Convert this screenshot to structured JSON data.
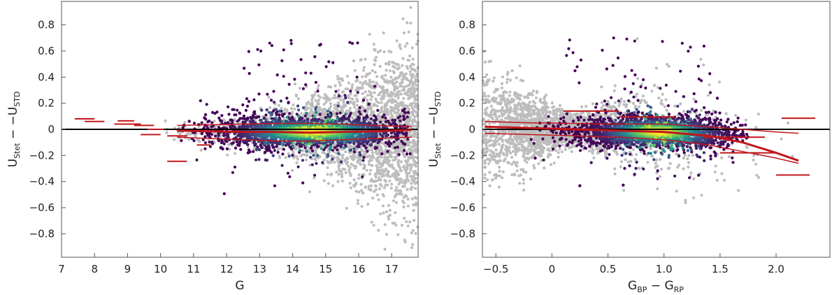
{
  "chart_data": [
    {
      "type": "scatter",
      "panel": "left",
      "title": "",
      "xlabel": "G",
      "ylabel_main": "U",
      "ylabel_sub1": "Stet",
      "ylabel_mid": " − −U",
      "ylabel_sub2": "STD",
      "xlim": [
        7.0,
        17.8
      ],
      "ylim": [
        -0.98,
        0.98
      ],
      "xticks": [
        7,
        8,
        9,
        10,
        11,
        12,
        13,
        14,
        15,
        16,
        17
      ],
      "yticks": [
        -0.8,
        -0.6,
        -0.4,
        -0.2,
        0,
        0.2,
        0.4,
        0.6,
        0.8
      ],
      "ytick_labels": [
        "−0.8",
        "−0.6",
        "−0.4",
        "−0.2",
        "0",
        "0.2",
        "0.4",
        "0.6",
        "0.8"
      ],
      "reference_line_y": 0,
      "series": [
        {
          "role": "all stars",
          "color": "#bdbdbd",
          "x_range": [
            9.5,
            17.8
          ],
          "y_spread_growth": "increases toward faint G"
        },
        {
          "role": "selected stars (density colored)",
          "colormap": [
            "#440154",
            "#3b528b",
            "#21918c",
            "#5ec962",
            "#fde725"
          ],
          "x_range": [
            10.5,
            17.6
          ],
          "y_center": -0.02
        },
        {
          "role": "running median",
          "color": "#c0161b",
          "x": [
            10.5,
            11.5,
            12.5,
            13.5,
            14.5,
            15.5,
            16.5,
            17.6
          ],
          "y": [
            -0.01,
            -0.015,
            -0.02,
            -0.02,
            -0.025,
            -0.02,
            -0.015,
            -0.005
          ]
        },
        {
          "role": "upper percentile",
          "color": "#c0161b",
          "x": [
            10.5,
            11.5,
            12.5,
            13.5,
            14.5,
            15.5,
            16.5,
            17.6
          ],
          "y": [
            0.03,
            0.035,
            0.04,
            0.045,
            0.045,
            0.04,
            0.03,
            0.02
          ]
        },
        {
          "role": "lower percentile",
          "color": "#c0161b",
          "x": [
            10.5,
            11.5,
            12.5,
            13.5,
            14.5,
            15.5,
            16.5,
            17.6
          ],
          "y": [
            -0.06,
            -0.07,
            -0.08,
            -0.09,
            -0.09,
            -0.08,
            -0.07,
            -0.06
          ]
        },
        {
          "role": "bright-star segments",
          "color": "#c0161b",
          "segments": [
            {
              "x0": 7.4,
              "x1": 8.0,
              "y": 0.08
            },
            {
              "x0": 7.7,
              "x1": 8.3,
              "y": 0.06
            },
            {
              "x0": 8.7,
              "x1": 9.2,
              "y": 0.065
            },
            {
              "x0": 8.6,
              "x1": 9.4,
              "y": 0.04
            },
            {
              "x0": 9.2,
              "x1": 9.8,
              "y": 0.03
            },
            {
              "x0": 9.6,
              "x1": 10.1,
              "y": 0.0
            },
            {
              "x0": 9.4,
              "x1": 10.0,
              "y": -0.04
            },
            {
              "x0": 10.2,
              "x1": 10.8,
              "y": -0.05
            },
            {
              "x0": 10.2,
              "x1": 10.8,
              "y": -0.245
            },
            {
              "x0": 11.1,
              "x1": 11.5,
              "y": -0.12
            }
          ]
        }
      ]
    },
    {
      "type": "scatter",
      "panel": "right",
      "title": "",
      "xlabel_main": "G",
      "xlabel_sub1": "BP",
      "xlabel_mid": " − G",
      "xlabel_sub2": "RP",
      "ylabel_main": "U",
      "ylabel_sub1": "Stet",
      "ylabel_mid": " − −U",
      "ylabel_sub2": "STD",
      "xlim": [
        -0.62,
        2.48
      ],
      "ylim": [
        -0.98,
        0.98
      ],
      "xticks": [
        -0.5,
        0,
        0.5,
        1.0,
        1.5,
        2.0
      ],
      "xtick_labels": [
        "−0.5",
        "0",
        "0.5",
        "1.0",
        "1.5",
        "2.0"
      ],
      "yticks": [
        -0.8,
        -0.6,
        -0.4,
        -0.2,
        0,
        0.2,
        0.4,
        0.6,
        0.8
      ],
      "ytick_labels": [
        "−0.8",
        "−0.6",
        "−0.4",
        "−0.2",
        "0",
        "0.2",
        "0.4",
        "0.6",
        "0.8"
      ],
      "reference_line_y": 0,
      "series": [
        {
          "role": "all stars",
          "color": "#bdbdbd",
          "x_range": [
            -0.62,
            2.48
          ]
        },
        {
          "role": "selected stars (density colored)",
          "colormap": [
            "#440154",
            "#3b528b",
            "#21918c",
            "#5ec962",
            "#fde725"
          ],
          "x_range": [
            -0.55,
            1.75
          ],
          "y_center": -0.02
        },
        {
          "role": "running median",
          "color": "#c0161b",
          "x": [
            -0.6,
            -0.2,
            0.2,
            0.6,
            1.0,
            1.4,
            1.7,
            2.0,
            2.2
          ],
          "y": [
            0.02,
            0.01,
            0.0,
            -0.01,
            -0.02,
            -0.05,
            -0.1,
            -0.18,
            -0.24
          ]
        },
        {
          "role": "upper percentile",
          "color": "#c0161b",
          "x": [
            -0.6,
            -0.2,
            0.2,
            0.6,
            1.0,
            1.4,
            1.7,
            2.0,
            2.2
          ],
          "y": [
            0.06,
            0.05,
            0.045,
            0.04,
            0.04,
            0.02,
            0.0,
            -0.02,
            -0.03
          ]
        },
        {
          "role": "lower percentile",
          "color": "#c0161b",
          "x": [
            -0.6,
            -0.2,
            0.2,
            0.6,
            1.0,
            1.4,
            1.7,
            2.0,
            2.2
          ],
          "y": [
            -0.03,
            -0.04,
            -0.05,
            -0.06,
            -0.08,
            -0.12,
            -0.17,
            -0.22,
            -0.26
          ]
        },
        {
          "role": "faint outer traces",
          "color": "#c0161b",
          "segments": [
            {
              "x0": 0.1,
              "x1": 0.6,
              "y": 0.14
            },
            {
              "x0": 0.6,
              "x1": 1.1,
              "y": 0.095
            },
            {
              "x0": 1.35,
              "x1": 1.9,
              "y": -0.06
            },
            {
              "x0": 1.5,
              "x1": 2.0,
              "y": -0.18
            },
            {
              "x0": 2.05,
              "x1": 2.35,
              "y": 0.085
            },
            {
              "x0": 2.0,
              "x1": 2.3,
              "y": -0.35
            }
          ]
        }
      ]
    }
  ]
}
